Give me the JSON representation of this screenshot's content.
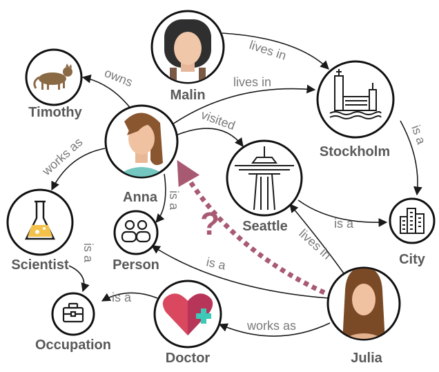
{
  "nodes": {
    "malin": "Malin",
    "timothy": "Timothy",
    "anna": "Anna",
    "stockholm": "Stockholm",
    "seattle": "Seattle",
    "scientist": "Scientist",
    "person": "Person",
    "city": "City",
    "occupation": "Occupation",
    "doctor": "Doctor",
    "julia": "Julia"
  },
  "edges": {
    "malin_stockholm": "lives in",
    "anna_stockholm": "lives in",
    "anna_timothy": "owns",
    "anna_seattle": "visited",
    "anna_scientist": "works as",
    "anna_person": "is a",
    "stockholm_city": "is a",
    "seattle_city": "is a",
    "julia_seattle": "lives in",
    "julia_person": "is a",
    "julia_doctor": "works as",
    "scientist_occupation": "is a",
    "doctor_occupation": "is a"
  },
  "query_mark": "?",
  "colors": {
    "query": "#a85a73",
    "ring": "#111111",
    "label": "#595959"
  }
}
